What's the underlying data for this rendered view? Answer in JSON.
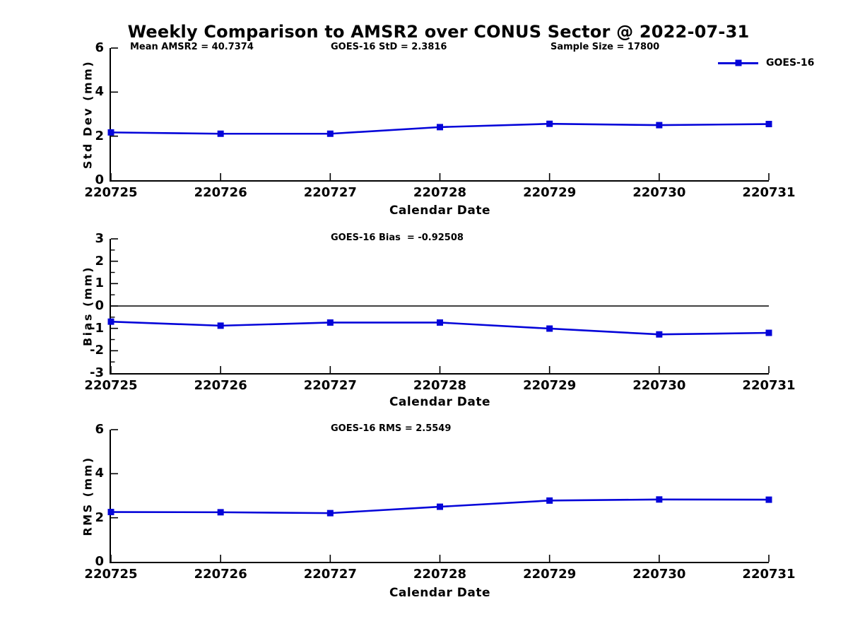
{
  "title": "Weekly Comparison to AMSR2 over CONUS Sector @ 2022-07-31",
  "xlabel": "Calendar Date",
  "legend": {
    "label": "GOES-16"
  },
  "colors": {
    "series": "#0404d9",
    "axis": "#000000",
    "zero_line": "#000000"
  },
  "x_categories": [
    "220725",
    "220726",
    "220727",
    "220728",
    "220729",
    "220730",
    "220731"
  ],
  "chart_data": [
    {
      "type": "line",
      "series_name": "GOES-16",
      "ylabel": "Std Dev (mm)",
      "xlabel": "Calendar Date",
      "ylim": [
        0,
        6
      ],
      "yticks": [
        0,
        2,
        4,
        6
      ],
      "minor_ytick_step": 0,
      "grid": false,
      "legend_position": "top-right",
      "zero_line": false,
      "x": [
        "220725",
        "220726",
        "220727",
        "220728",
        "220729",
        "220730",
        "220731"
      ],
      "values": [
        2.17,
        2.11,
        2.11,
        2.41,
        2.56,
        2.5,
        2.55
      ],
      "annotations": [
        "Mean AMSR2 = 40.7374",
        "GOES-16 StD = 2.3816",
        "Sample Size = 17800"
      ]
    },
    {
      "type": "line",
      "series_name": "GOES-16",
      "ylabel": "Bias (mm)",
      "xlabel": "Calendar Date",
      "ylim": [
        -3,
        3
      ],
      "yticks": [
        -3,
        -2,
        -1,
        0,
        1,
        2,
        3
      ],
      "minor_ytick_step": 0.5,
      "grid": false,
      "zero_line": true,
      "x": [
        "220725",
        "220726",
        "220727",
        "220728",
        "220729",
        "220730",
        "220731"
      ],
      "values": [
        -0.7,
        -0.88,
        -0.74,
        -0.74,
        -1.01,
        -1.27,
        -1.2
      ],
      "annotations": [
        "GOES-16 Bias  = -0.92508"
      ]
    },
    {
      "type": "line",
      "series_name": "GOES-16",
      "ylabel": "RMS (mm)",
      "xlabel": "Calendar Date",
      "ylim": [
        0,
        6
      ],
      "yticks": [
        0,
        2,
        4,
        6
      ],
      "minor_ytick_step": 0,
      "grid": false,
      "zero_line": false,
      "x": [
        "220725",
        "220726",
        "220727",
        "220728",
        "220729",
        "220730",
        "220731"
      ],
      "values": [
        2.26,
        2.25,
        2.21,
        2.5,
        2.78,
        2.83,
        2.82
      ],
      "annotations": [
        "GOES-16 RMS = 2.5549"
      ]
    }
  ]
}
